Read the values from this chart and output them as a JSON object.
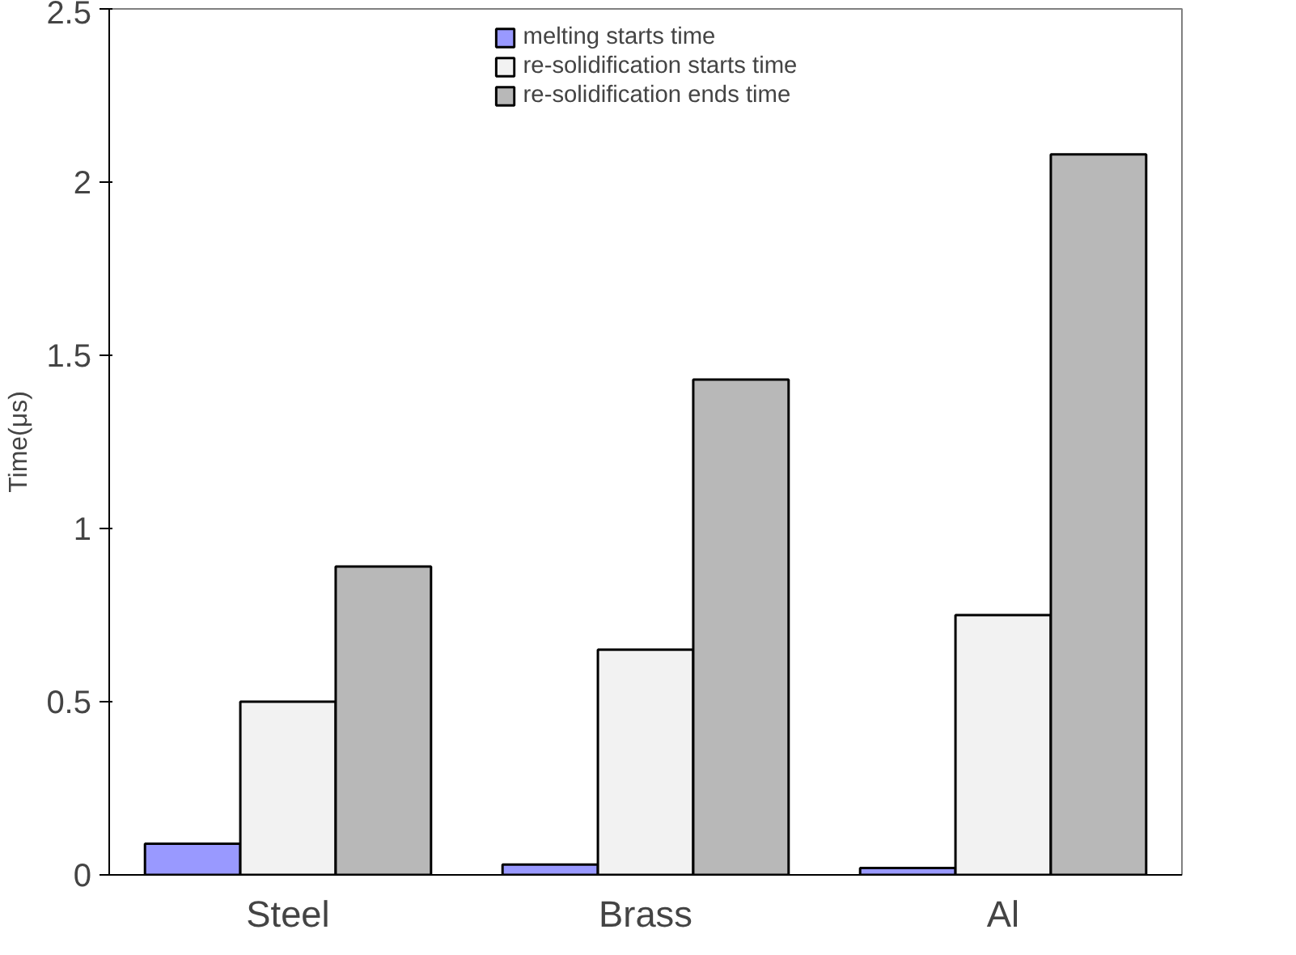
{
  "chart_data": {
    "type": "bar",
    "ylabel": "Time(μs)",
    "categories": [
      "Steel",
      "Brass",
      "Al"
    ],
    "series": [
      {
        "name": "melting starts time",
        "color": "#9999ff",
        "values": [
          0.09,
          0.03,
          0.02
        ]
      },
      {
        "name": "re-solidification starts time",
        "color": "#f2f2f2",
        "values": [
          0.5,
          0.65,
          0.75
        ]
      },
      {
        "name": "re-solidification ends time",
        "color": "#b8b8b8",
        "values": [
          0.89,
          1.43,
          2.08
        ]
      }
    ],
    "ylim": [
      0,
      2.5
    ],
    "yticks": [
      0,
      0.5,
      1,
      1.5,
      2,
      2.5
    ],
    "grid": false,
    "legend": "top"
  }
}
